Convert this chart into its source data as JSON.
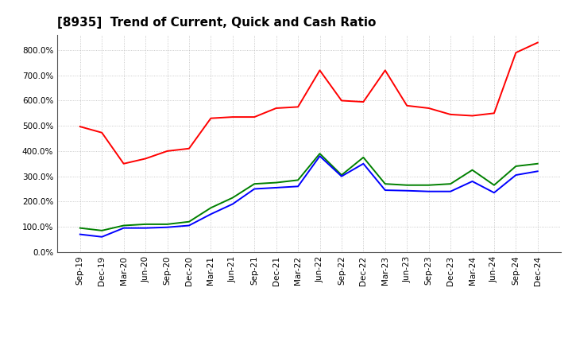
{
  "title": "[8935]  Trend of Current, Quick and Cash Ratio",
  "labels": [
    "Sep-19",
    "Dec-19",
    "Mar-20",
    "Jun-20",
    "Sep-20",
    "Dec-20",
    "Mar-21",
    "Jun-21",
    "Sep-21",
    "Dec-21",
    "Mar-22",
    "Jun-22",
    "Sep-22",
    "Dec-22",
    "Mar-23",
    "Jun-23",
    "Sep-23",
    "Dec-23",
    "Mar-24",
    "Jun-24",
    "Sep-24",
    "Dec-24"
  ],
  "current_ratio": [
    497,
    473,
    350,
    370,
    400,
    410,
    530,
    535,
    535,
    570,
    575,
    720,
    600,
    595,
    720,
    580,
    570,
    545,
    540,
    550,
    790,
    830
  ],
  "quick_ratio": [
    95,
    85,
    105,
    110,
    110,
    120,
    175,
    215,
    270,
    275,
    285,
    390,
    305,
    375,
    270,
    265,
    265,
    270,
    325,
    265,
    340,
    350
  ],
  "cash_ratio": [
    70,
    60,
    95,
    95,
    98,
    105,
    150,
    190,
    250,
    255,
    260,
    380,
    300,
    350,
    245,
    243,
    240,
    240,
    280,
    235,
    305,
    320
  ],
  "current_color": "#ff0000",
  "quick_color": "#008000",
  "cash_color": "#0000ff",
  "ylim": [
    0,
    860
  ],
  "yticks": [
    0,
    100,
    200,
    300,
    400,
    500,
    600,
    700,
    800
  ],
  "background_color": "#ffffff",
  "grid_color": "#bbbbbb",
  "title_fontsize": 11,
  "tick_fontsize": 7.5,
  "legend_fontsize": 9
}
